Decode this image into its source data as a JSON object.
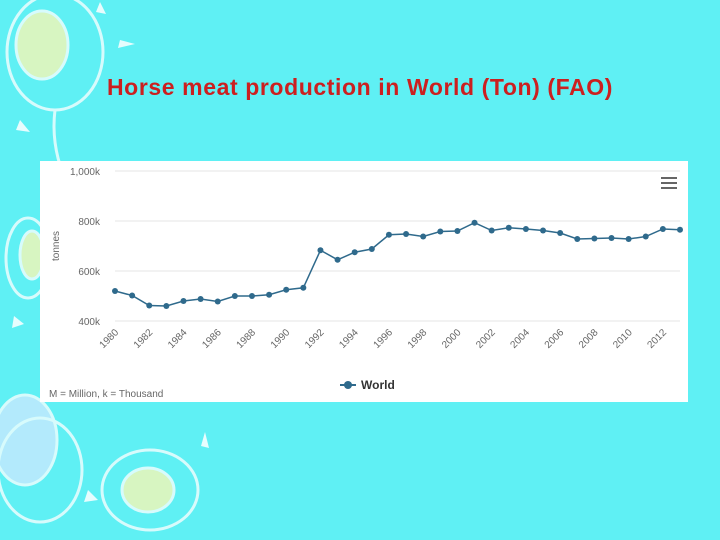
{
  "slide": {
    "title": "Horse meat production in World (Ton) (FAO)",
    "title_color": "#cc1f1f"
  },
  "chart_data": {
    "type": "line",
    "ylabel": "tonnes",
    "ylim": [
      400,
      1000
    ],
    "y_unit": "k",
    "y_ticks": [
      400,
      600,
      800,
      1000
    ],
    "y_tick_labels": [
      "400k",
      "600k",
      "800k",
      "1,000k"
    ],
    "x": [
      1980,
      1981,
      1982,
      1983,
      1984,
      1985,
      1986,
      1987,
      1988,
      1989,
      1990,
      1991,
      1992,
      1993,
      1994,
      1995,
      1996,
      1997,
      1998,
      1999,
      2000,
      2001,
      2002,
      2003,
      2004,
      2005,
      2006,
      2007,
      2008,
      2009,
      2010,
      2011,
      2012,
      2013
    ],
    "x_tick_labels": [
      "1980",
      "1982",
      "1984",
      "1986",
      "1988",
      "1990",
      "1992",
      "1994",
      "1996",
      "1998",
      "2000",
      "2002",
      "2004",
      "2006",
      "2008",
      "2010",
      "2012"
    ],
    "series": [
      {
        "name": "World",
        "color": "#2f6a8c",
        "values": [
          520,
          502,
          462,
          460,
          480,
          488,
          478,
          500,
          500,
          505,
          525,
          533,
          683,
          645,
          675,
          688,
          745,
          748,
          738,
          758,
          760,
          793,
          762,
          773,
          768,
          762,
          752,
          728,
          730,
          732,
          728,
          738,
          768,
          765
        ]
      }
    ],
    "grid": true,
    "legend_position": "bottom-center",
    "credits": "M = Million, k = Thousand"
  },
  "colors": {
    "background": "#5ff0f4",
    "panel": "#ffffff",
    "grid": "#e6e6e6",
    "axis_text": "#666666"
  },
  "icons": {
    "menu": "hamburger-menu-icon"
  }
}
